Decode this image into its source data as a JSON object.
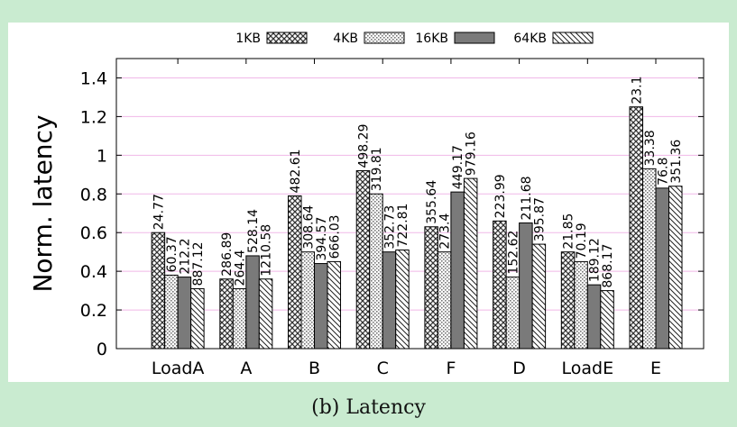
{
  "caption": "(b) Latency",
  "colors": {
    "background": "#c9ebd0",
    "panel": "#ffffff",
    "grid": "#f0b8e8",
    "series_64KB": "#7a7a7a"
  },
  "chart_data": {
    "type": "bar",
    "title": "",
    "xlabel": "",
    "ylabel": "Norm. latency",
    "ylim": [
      0,
      1.5
    ],
    "yticks": [
      "0",
      "0.2",
      "0.4",
      "0.6",
      "0.8",
      "1",
      "1.2",
      "1.4"
    ],
    "grid": true,
    "legend_position": "top-center",
    "categories": [
      "LoadA",
      "A",
      "B",
      "C",
      "F",
      "D",
      "LoadE",
      "E"
    ],
    "series": [
      {
        "name": "1KB",
        "pattern": "dense-crosshatch",
        "values": [
          0.6,
          0.36,
          0.79,
          0.92,
          0.63,
          0.66,
          0.5,
          1.25
        ],
        "labels": [
          "24.77",
          "286.89",
          "482.61",
          "498.29",
          "355.64",
          "223.99",
          "21.85",
          "23.1"
        ]
      },
      {
        "name": "4KB",
        "pattern": "light-dotted",
        "values": [
          0.38,
          0.31,
          0.5,
          0.8,
          0.5,
          0.37,
          0.45,
          0.93
        ],
        "labels": [
          "60.37",
          "264.4",
          "308.64",
          "319.81",
          "273.4",
          "152.62",
          "70.19",
          "33.38"
        ]
      },
      {
        "name": "16KB",
        "pattern": "solid-gray",
        "values": [
          0.37,
          0.48,
          0.44,
          0.5,
          0.81,
          0.65,
          0.33,
          0.83
        ],
        "labels": [
          "212.2",
          "528.14",
          "394.57",
          "352.73",
          "449.17",
          "211.68",
          "189.12",
          "76.8"
        ]
      },
      {
        "name": "64KB",
        "pattern": "diagonal-stripes",
        "values": [
          0.31,
          0.36,
          0.45,
          0.51,
          0.88,
          0.54,
          0.3,
          0.84
        ],
        "labels": [
          "887.12",
          "1210.58",
          "666.03",
          "722.81",
          "979.16",
          "395.87",
          "868.17",
          "351.36"
        ]
      }
    ]
  }
}
